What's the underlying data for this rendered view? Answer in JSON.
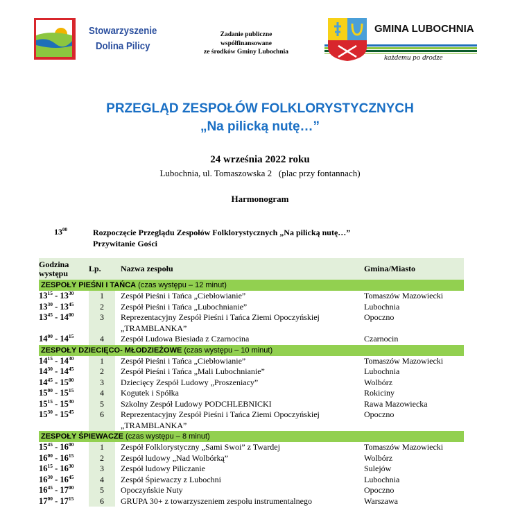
{
  "header": {
    "org_name_line1": "Stowarzyszenie",
    "org_name_line2": "Dolina Pilicy",
    "funding_line1": "Zadanie publiczne",
    "funding_line2": "współfinansowane",
    "funding_line3": "ze środków Gminy Lubochnia",
    "gmina_logo_text": "GMINA LUBOCHNIA",
    "gmina_slogan": "każdemu po drodze"
  },
  "event": {
    "title_line1": "PRZEGLĄD ZESPOŁÓW FOLKLORYSTYCZNYCH",
    "title_line2": "„Na pilicką nutę…”",
    "date": "24 września 2022 roku",
    "place": "Lubochnia, ul. Tomaszowska 2   (plac przy fontannach)",
    "schedule_heading": "Harmonogram",
    "opening_hour": "13",
    "opening_min": "00",
    "opening_line1": "Rozpoczęcie Przeglądu Zespołów Folklorystycznych „Na pilicką nutę…”",
    "opening_line2": "Przywitanie Gości"
  },
  "colors": {
    "title": "#1a6fc4",
    "section": "#92d050",
    "header": "#e2efda"
  },
  "table": {
    "headers": {
      "time": "Godzina występu",
      "lp": "Lp.",
      "name": "Nazwa zespołu",
      "city": "Gmina/Miasto"
    },
    "sections": [
      {
        "title": "ZESPOŁY PIEŚNI I TAŃCA",
        "note": " (czas występu – 12 minut)",
        "rows": [
          {
            "sh": "13",
            "sm": "15",
            "eh": "13",
            "em": "30",
            "lp": "1",
            "name": "Zespół Pieśni i Tańca „Ciebłowianie”",
            "city": "Tomaszów Mazowiecki"
          },
          {
            "sh": "13",
            "sm": "30",
            "eh": "13",
            "em": "45",
            "lp": "2",
            "name": "Zespół Pieśni i Tańca „Lubochnianie”",
            "city": "Lubochnia"
          },
          {
            "sh": "13",
            "sm": "45",
            "eh": "14",
            "em": "00",
            "lp": "3",
            "name": "Reprezentacyjny Zespół Pieśni i Tańca Ziemi Opoczyńskiej „TRAMBLANKA”",
            "city": "Opoczno"
          },
          {
            "sh": "14",
            "sm": "00",
            "eh": "14",
            "em": "15",
            "lp": "4",
            "name": "Zespół Ludowa Biesiada z Czarnocina",
            "city": "Czarnocin"
          }
        ]
      },
      {
        "title": "ZESPOŁY DZIECIĘCO- MŁODZIEŻOWE",
        "note": " (czas występu – 10 minut)",
        "rows": [
          {
            "sh": "14",
            "sm": "15",
            "eh": "14",
            "em": "30",
            "lp": "1",
            "name": "Zespół Pieśni i Tańca „Ciebłowianie”",
            "city": "Tomaszów Mazowiecki"
          },
          {
            "sh": "14",
            "sm": "30",
            "eh": "14",
            "em": "45",
            "lp": "2",
            "name": "Zespół Pieśni i Tańca „Mali Lubochnianie”",
            "city": "Lubochnia"
          },
          {
            "sh": "14",
            "sm": "45",
            "eh": "15",
            "em": "00",
            "lp": "3",
            "name": "Dziecięcy Zespół Ludowy „Proszeniacy”",
            "city": "Wolbórz"
          },
          {
            "sh": "15",
            "sm": "00",
            "eh": "15",
            "em": "15",
            "lp": "4",
            "name": "Kogutek i Spółka",
            "city": "Rokiciny"
          },
          {
            "sh": "15",
            "sm": "15",
            "eh": "15",
            "em": "30",
            "lp": "5",
            "name": "Szkolny Zespół Ludowy PODCHLEBNICKI",
            "city": "Rawa Mazowiecka"
          },
          {
            "sh": "15",
            "sm": "30",
            "eh": "15",
            "em": "45",
            "lp": "6",
            "name": "Reprezentacyjny Zespół Pieśni i Tańca Ziemi Opoczyńskiej „TRAMBLANKA”",
            "city": "Opoczno"
          }
        ]
      },
      {
        "title": "ZESPOŁY ŚPIEWACZE",
        "note": " (czas występu – 8 minut)",
        "rows": [
          {
            "sh": "15",
            "sm": "45",
            "eh": "16",
            "em": "00",
            "lp": "1",
            "name": "Zespół Folklorystyczny „Sami Swoi” z Twardej",
            "city": "Tomaszów Mazowiecki"
          },
          {
            "sh": "16",
            "sm": "00",
            "eh": "16",
            "em": "15",
            "lp": "2",
            "name": "Zespół ludowy „Nad Wolbórką”",
            "city": "Wolbórz"
          },
          {
            "sh": "16",
            "sm": "15",
            "eh": "16",
            "em": "30",
            "lp": "3",
            "name": "Zespół ludowy Piliczanie",
            "city": "Sulejów"
          },
          {
            "sh": "16",
            "sm": "30",
            "eh": "16",
            "em": "45",
            "lp": "4",
            "name": "Zespół Śpiewaczy z Lubochni",
            "city": "Lubochnia"
          },
          {
            "sh": "16",
            "sm": "45",
            "eh": "17",
            "em": "00",
            "lp": "5",
            "name": "Opoczyńskie Nuty",
            "city": "Opoczno"
          },
          {
            "sh": "17",
            "sm": "00",
            "eh": "17",
            "em": "15",
            "lp": "6",
            "name": "GRUPA 30+ z towarzyszeniem zespołu instrumentalnego",
            "city": "Warszawa"
          }
        ]
      }
    ]
  }
}
